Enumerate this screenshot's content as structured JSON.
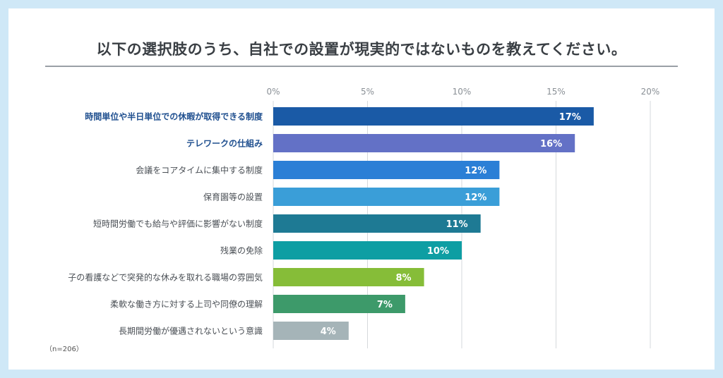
{
  "chart_data": {
    "type": "bar",
    "orientation": "horizontal",
    "title": "以下の選択肢のうち、自社での設置が現実的ではないものを教えてください。",
    "note": "（n=206）",
    "xlim": [
      0,
      20
    ],
    "xticks": [
      "0%",
      "5%",
      "10%",
      "15%",
      "20%"
    ],
    "xtick_values": [
      0,
      5,
      10,
      15,
      20
    ],
    "grid": true,
    "categories": [
      "時間単位や半日単位での休暇が取得できる制度",
      "テレワークの仕組み",
      "会議をコアタイムに集中する制度",
      "保育園等の設置",
      "短時間労働でも給与や評価に影響がない制度",
      "残業の免除",
      "子の看護などで突発的な休みを取れる職場の雰囲気",
      "柔軟な働き方に対する上司や同僚の理解",
      "長期間労働が優遇されないという意識"
    ],
    "values": [
      17,
      16,
      12,
      12,
      11,
      10,
      8,
      7,
      4
    ],
    "value_labels": [
      "17%",
      "16%",
      "12%",
      "12%",
      "11%",
      "10%",
      "8%",
      "7%",
      "4%"
    ],
    "highlighted": [
      true,
      true,
      false,
      false,
      false,
      false,
      false,
      false,
      false
    ],
    "colors": [
      "#1a5aa6",
      "#6371c6",
      "#2b7fd6",
      "#3a9ed8",
      "#1e7a94",
      "#0e9ea3",
      "#86bd38",
      "#3d9a6a",
      "#a5b4b8"
    ],
    "label_color_highlight": "#1f4f8f",
    "label_color": "#4a4f55"
  }
}
